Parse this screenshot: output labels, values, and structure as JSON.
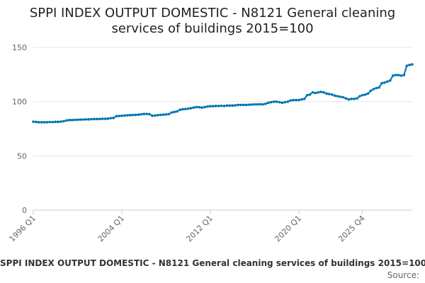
{
  "title_line1": "SPPI INDEX OUTPUT DOMESTIC - N8121 General cleaning",
  "title_line2": "services of buildings 2015=100",
  "legend_label": "SPPI INDEX OUTPUT DOMESTIC - N8121 General cleaning services of buildings 2015=100",
  "source_label": "Source:",
  "colors": {
    "series": "#0073b3",
    "grid": "#e6e6e6",
    "axis": "#cccccc",
    "tick_text": "#666666"
  },
  "chart_data": {
    "type": "line",
    "title": "SPPI INDEX OUTPUT DOMESTIC - N8121 General cleaning services of buildings 2015=100",
    "xlabel": "",
    "ylabel": "",
    "x_start": "1996 Q1",
    "x_end": "2025 Q4",
    "x_tick_labels": [
      "1996 Q1",
      "2004 Q1",
      "2012 Q1",
      "2020 Q1",
      "2025 Q4"
    ],
    "y_ticks": [
      0,
      50,
      100,
      150
    ],
    "ylim": [
      0,
      150
    ],
    "grid": true,
    "legend_position": "bottom",
    "series": [
      {
        "name": "SPPI INDEX OUTPUT DOMESTIC - N8121 General cleaning services of buildings 2015=100",
        "values": [
          81.5,
          81.3,
          81.0,
          81.0,
          81.0,
          81.0,
          81.2,
          81.2,
          81.4,
          81.4,
          81.6,
          82.0,
          82.7,
          83.0,
          83.0,
          83.2,
          83.3,
          83.4,
          83.5,
          83.6,
          83.7,
          83.8,
          84.0,
          84.0,
          84.0,
          84.2,
          84.2,
          84.3,
          84.8,
          85.0,
          86.6,
          86.8,
          87.0,
          87.2,
          87.4,
          87.6,
          87.7,
          87.8,
          88.0,
          88.3,
          88.6,
          88.6,
          88.5,
          87.0,
          87.2,
          87.5,
          87.8,
          88.0,
          88.2,
          88.5,
          90.0,
          90.5,
          91.0,
          92.5,
          93.0,
          93.2,
          93.5,
          94.0,
          94.5,
          95.0,
          94.8,
          94.5,
          95.0,
          95.5,
          95.8,
          95.8,
          96.0,
          96.0,
          96.2,
          96.0,
          96.4,
          96.4,
          96.4,
          96.6,
          97.0,
          97.0,
          97.0,
          97.0,
          97.2,
          97.4,
          97.5,
          97.5,
          97.6,
          97.5,
          98.0,
          99.0,
          99.5,
          100.0,
          100.0,
          99.5,
          99.0,
          99.5,
          100.0,
          101.0,
          101.5,
          101.5,
          101.5,
          102.0,
          102.5,
          106.0,
          106.5,
          108.5,
          108.0,
          108.5,
          109.0,
          108.5,
          107.5,
          107.0,
          106.5,
          105.5,
          105.0,
          104.5,
          104.0,
          103.0,
          102.0,
          102.5,
          102.5,
          103.0,
          105.0,
          106.0,
          106.5,
          107.5,
          110.0,
          111.5,
          112.5,
          113.0,
          117.0,
          117.5,
          118.5,
          119.5,
          124.0,
          124.5,
          124.5,
          124.0,
          124.5,
          133.0,
          133.8,
          134.3
        ]
      }
    ]
  }
}
